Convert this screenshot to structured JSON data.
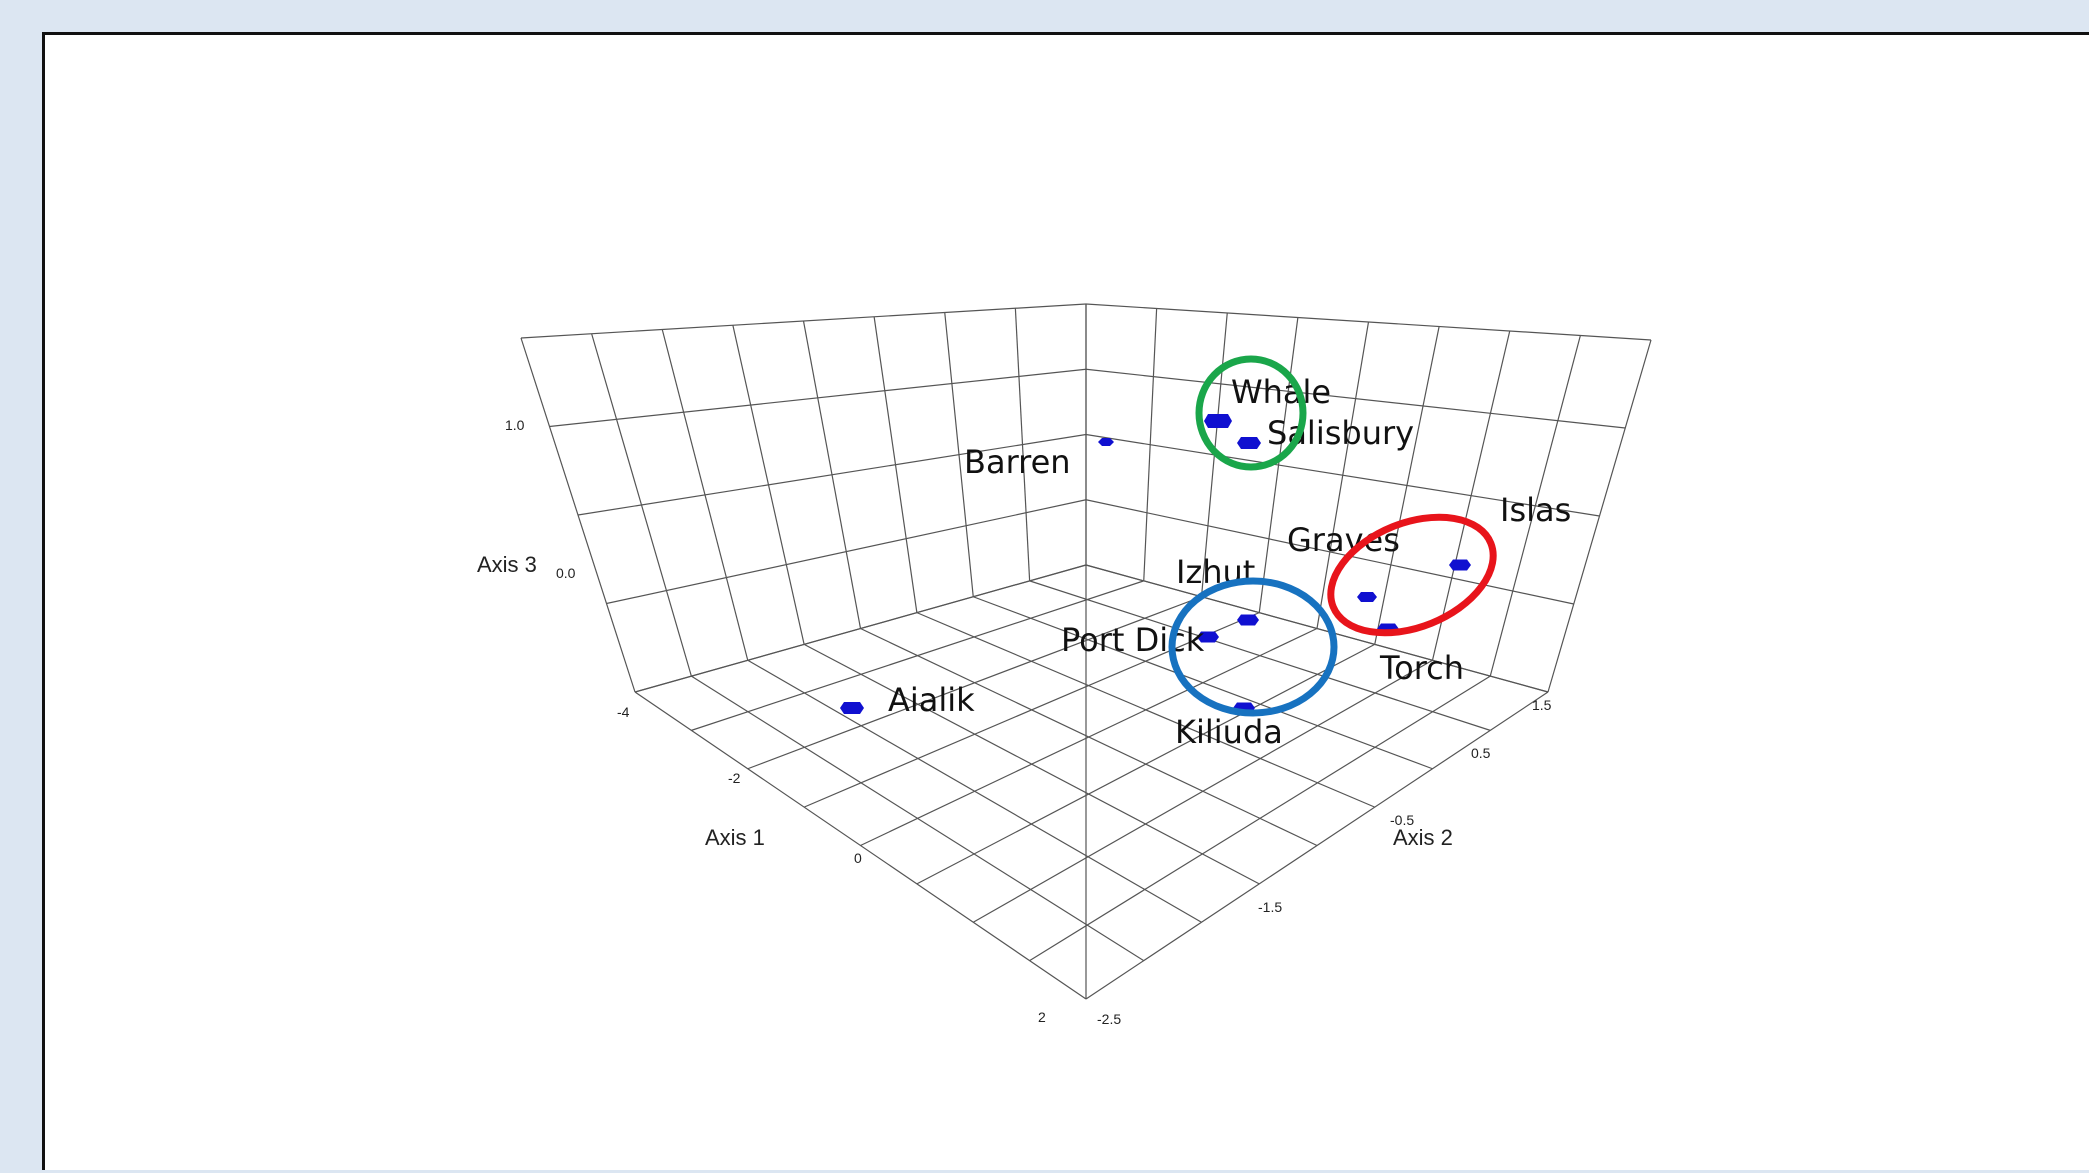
{
  "chart_data": {
    "type": "scatter",
    "projection": "3d",
    "axes": {
      "x": {
        "label": "Axis 1",
        "ticks": [
          "-4",
          "-2",
          "0",
          "2"
        ]
      },
      "y": {
        "label": "Axis 2",
        "ticks": [
          "1.5",
          "0.5",
          "-0.5",
          "-1.5",
          "-2.5"
        ]
      },
      "z": {
        "label": "Axis 3",
        "ticks": [
          "1.0",
          "0.0"
        ]
      }
    },
    "grid": true,
    "points": [
      {
        "label": "Whale"
      },
      {
        "label": "Salisbury"
      },
      {
        "label": "Barren"
      },
      {
        "label": "Islas"
      },
      {
        "label": "Graves"
      },
      {
        "label": "Torch"
      },
      {
        "label": "Izhut"
      },
      {
        "label": "Port Dick"
      },
      {
        "label": "Kiliuda"
      },
      {
        "label": "Aialik"
      }
    ],
    "groups": [
      {
        "color": "#1aa64a",
        "members": [
          "Whale",
          "Salisbury"
        ]
      },
      {
        "color": "#e8141b",
        "members": [
          "Graves",
          "Torch",
          "Islas"
        ]
      },
      {
        "color": "#1772c0",
        "members": [
          "Izhut",
          "Port Dick",
          "Kiliuda"
        ]
      }
    ],
    "marker_color": "#1010d0"
  }
}
